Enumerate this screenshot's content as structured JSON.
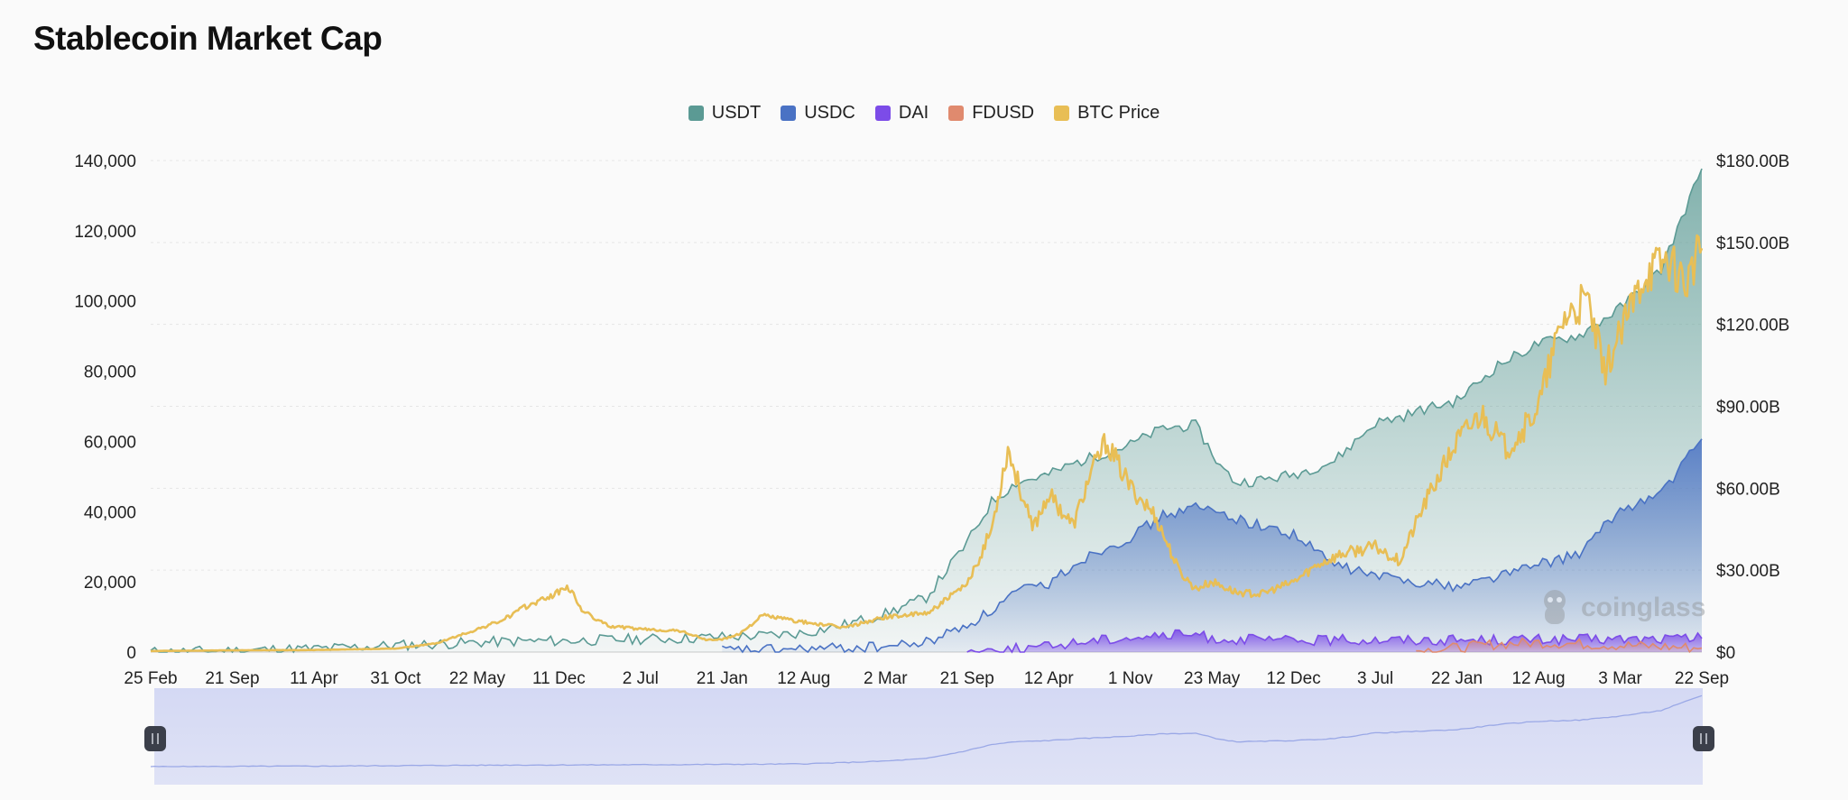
{
  "chart_data": {
    "type": "area",
    "title": "Stablecoin Market Cap",
    "legend_position": "top-center",
    "grid": true,
    "colors": {
      "USDT": "#5b9a94",
      "USDC": "#4a72c4",
      "DAI": "#7c4ce8",
      "FDUSD": "#e08a6e",
      "BTC Price": "#e8be55"
    },
    "x_ticks": [
      "25 Feb",
      "21 Sep",
      "11 Apr",
      "31 Oct",
      "22 May",
      "11 Dec",
      "2 Jul",
      "21 Jan",
      "12 Aug",
      "2 Mar",
      "21 Sep",
      "12 Apr",
      "1 Nov",
      "23 May",
      "12 Dec",
      "3 Jul",
      "22 Jan",
      "12 Aug",
      "3 Mar",
      "22 Sep"
    ],
    "y_left": {
      "ticks": [
        "0",
        "20,000",
        "40,000",
        "60,000",
        "80,000",
        "100,000",
        "120,000",
        "140,000"
      ],
      "ylim": [
        0,
        140000
      ]
    },
    "y_right": {
      "ticks": [
        "$0",
        "$30.00B",
        "$60.00B",
        "$90.00B",
        "$120.00B",
        "$150.00B",
        "$180.00B"
      ],
      "ylim": [
        0,
        180
      ]
    },
    "series": [
      {
        "name": "USDT",
        "axis": "right",
        "unit": "$B",
        "x": [
          0,
          0.5,
          1,
          1.5,
          2,
          2.5,
          3,
          3.5,
          4,
          4.5,
          5,
          5.5,
          6,
          6.5,
          7,
          7.5,
          8,
          8.5,
          9,
          9.5,
          10,
          10.3,
          10.6,
          11,
          11.3,
          11.6,
          12,
          12.4,
          12.8,
          13.1,
          13.3,
          13.6,
          14,
          14.5,
          15,
          15.3,
          15.6,
          16,
          16.5,
          17,
          17.5,
          18,
          18.5,
          19
        ],
        "values": [
          0,
          0.2,
          0.5,
          1,
          1.2,
          1.8,
          2.5,
          3,
          3.5,
          4,
          4.1,
          4.4,
          4.8,
          5,
          5.6,
          6,
          7,
          10,
          14,
          20,
          40,
          55,
          62,
          65,
          69,
          72,
          76,
          82,
          83,
          68,
          62,
          63,
          65,
          70,
          84,
          86,
          89,
          92,
          105,
          113,
          116,
          126,
          140,
          177
        ]
      },
      {
        "name": "USDC",
        "axis": "right",
        "unit": "$B",
        "x": [
          7,
          7.5,
          8,
          8.5,
          9,
          9.5,
          10,
          10.3,
          10.6,
          11,
          11.3,
          11.6,
          12,
          12.4,
          12.8,
          13.1,
          13.5,
          14,
          14.5,
          15,
          15.5,
          16,
          16.5,
          17,
          17.5,
          18,
          18.5,
          19
        ],
        "values": [
          0.5,
          0.8,
          1,
          1.5,
          2,
          3.5,
          10,
          15,
          22,
          25,
          32,
          37,
          42,
          50,
          53,
          51,
          47,
          43,
          32,
          28,
          26,
          24,
          28,
          32,
          36,
          52,
          58,
          78
        ]
      },
      {
        "name": "DAI",
        "axis": "right",
        "unit": "$B",
        "x": [
          10,
          10.5,
          11,
          11.3,
          11.6,
          12,
          12.4,
          12.8,
          13,
          13.5,
          14,
          14.5,
          15,
          15.5,
          16,
          17,
          18,
          19
        ],
        "values": [
          0.3,
          1,
          2,
          3.5,
          4.5,
          5.5,
          6,
          6.5,
          5,
          4.5,
          4.2,
          4.4,
          4.6,
          4.5,
          4.5,
          4.6,
          4.7,
          5
        ]
      },
      {
        "name": "FDUSD",
        "axis": "right",
        "unit": "$B",
        "x": [
          15.5,
          16,
          16.5,
          17,
          17.5,
          18,
          18.5,
          19
        ],
        "values": [
          0.5,
          1.5,
          3,
          3.5,
          3,
          2.5,
          2,
          1.5
        ]
      },
      {
        "name": "BTC Price",
        "axis": "left",
        "unit": "USD",
        "x": [
          0,
          1,
          2,
          3,
          3.5,
          4,
          4.3,
          4.6,
          5,
          5.1,
          5.3,
          5.6,
          6,
          6.5,
          6.8,
          7,
          7.2,
          7.5,
          8,
          8.5,
          9,
          9.5,
          10,
          10.3,
          10.5,
          10.8,
          11,
          11.3,
          11.5,
          11.7,
          12,
          12.3,
          12.6,
          12.8,
          13,
          13.3,
          13.6,
          14,
          14.3,
          14.6,
          15,
          15.3,
          15.6,
          16,
          16.3,
          16.6,
          16.8,
          17,
          17.3,
          17.6,
          17.8,
          18,
          18.3,
          18.6,
          18.8,
          19
        ],
        "values": [
          300,
          500,
          600,
          1000,
          2500,
          6500,
          9000,
          13000,
          17000,
          19000,
          11500,
          7500,
          6500,
          6000,
          3500,
          3600,
          5000,
          10500,
          8500,
          7000,
          10000,
          11000,
          19000,
          35000,
          58000,
          35000,
          45000,
          36000,
          50000,
          60000,
          47000,
          39000,
          23000,
          18000,
          20000,
          17000,
          16500,
          20000,
          25000,
          28000,
          30000,
          26000,
          42000,
          60000,
          68000,
          58000,
          63000,
          70000,
          95000,
          100000,
          80000,
          90000,
          108000,
          112000,
          105000,
          115000
        ]
      }
    ]
  }
}
